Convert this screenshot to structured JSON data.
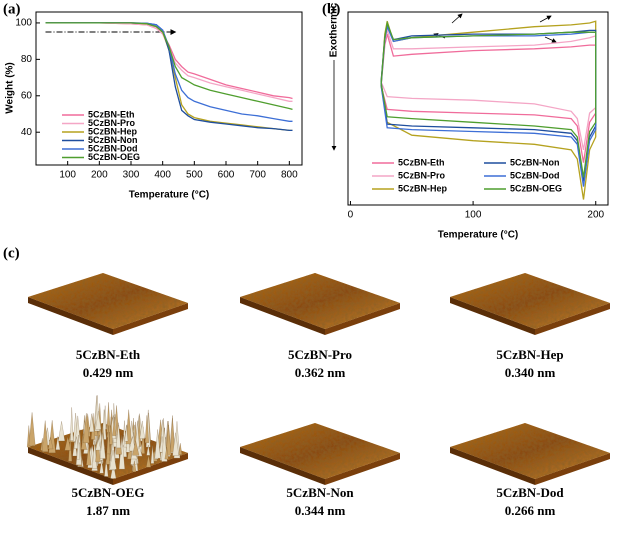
{
  "chart_data": [
    {
      "type": "line",
      "panel_label": "(a)",
      "xlabel": "Temperature (°C)",
      "ylabel": "Weight (%)",
      "xlim": [
        0,
        840
      ],
      "ylim": [
        22,
        106
      ],
      "xticks": [
        100,
        200,
        300,
        400,
        500,
        600,
        700,
        800
      ],
      "yticks": [
        40,
        60,
        80,
        100
      ],
      "reference_line": {
        "y": 95,
        "x": [
          30,
          440
        ]
      },
      "legend_columns": 1,
      "x": [
        30,
        100,
        200,
        300,
        350,
        380,
        400,
        420,
        440,
        460,
        480,
        500,
        550,
        600,
        650,
        700,
        750,
        800,
        810
      ],
      "series": [
        {
          "name": "5CzBN-Eth",
          "color": "#f06c9b",
          "values": [
            100,
            100,
            100,
            99.5,
            99,
            97,
            94,
            88,
            80,
            76,
            73,
            72,
            69,
            66,
            64,
            62,
            60,
            59,
            58.5
          ]
        },
        {
          "name": "5CzBN-Pro",
          "color": "#f4a6c6",
          "values": [
            100,
            100,
            100,
            99.5,
            99,
            97,
            94,
            86,
            78,
            74,
            71,
            70,
            67,
            65,
            63,
            61,
            59,
            57,
            57
          ]
        },
        {
          "name": "5CzBN-Hep",
          "color": "#b5a21f",
          "values": [
            100,
            100,
            100,
            100,
            99.5,
            98,
            95,
            85,
            70,
            55,
            50,
            48,
            46,
            45,
            44,
            43,
            42,
            41,
            41
          ]
        },
        {
          "name": "5CzBN-Non",
          "color": "#1f4e9e",
          "values": [
            100,
            100,
            100,
            100,
            99.8,
            99,
            96,
            85,
            65,
            52,
            49,
            47,
            45.5,
            44.5,
            43.5,
            42.5,
            42,
            41,
            41
          ]
        },
        {
          "name": "5CzBN-Dod",
          "color": "#3d6fd6",
          "values": [
            100,
            100,
            100,
            100,
            99.8,
            99,
            96,
            87,
            72,
            63,
            59,
            57,
            54,
            52,
            50,
            49,
            47.5,
            46,
            46
          ]
        },
        {
          "name": "5CzBN-OEG",
          "color": "#4f9e2e",
          "values": [
            100,
            100,
            100,
            100,
            99.6,
            98,
            95,
            87,
            76,
            70,
            68,
            66,
            63,
            61,
            59,
            57,
            55,
            53,
            52.5
          ]
        }
      ]
    },
    {
      "type": "line",
      "panel_label": "(b)",
      "xlabel": "Temperature (°C)",
      "ylabel": "Exothermic",
      "xlim": [
        -2,
        210
      ],
      "ylim": [
        -5,
        100
      ],
      "xticks": [
        0,
        100,
        200
      ],
      "legend_columns": 2,
      "series": [
        {
          "name": "5CzBN-Eth",
          "color": "#f06c9b",
          "x": [
            25,
            28,
            30,
            35,
            50,
            100,
            150,
            180,
            195,
            200,
            200,
            195,
            190,
            185,
            180,
            150,
            100,
            50,
            30,
            25
          ],
          "values": [
            60,
            82,
            88,
            76,
            77,
            79,
            80,
            81,
            82,
            82,
            45,
            40,
            18,
            38,
            42,
            44,
            45,
            46,
            47,
            60
          ]
        },
        {
          "name": "5CzBN-Pro",
          "color": "#f4a6c6",
          "x": [
            25,
            28,
            30,
            35,
            50,
            100,
            150,
            180,
            195,
            200,
            200,
            195,
            190,
            185,
            180,
            150,
            100,
            50,
            30,
            25
          ],
          "values": [
            62,
            84,
            90,
            80,
            80,
            81,
            82,
            84,
            86,
            87,
            48,
            45,
            25,
            42,
            46,
            50,
            52,
            53,
            54,
            62
          ]
        },
        {
          "name": "5CzBN-Hep",
          "color": "#b5a21f",
          "x": [
            25,
            28,
            30,
            35,
            50,
            100,
            150,
            180,
            195,
            200,
            200,
            195,
            190,
            185,
            180,
            150,
            100,
            50,
            30,
            25
          ],
          "values": [
            60,
            88,
            95,
            84,
            86,
            89,
            92,
            93,
            94,
            95,
            32,
            25,
            -2,
            20,
            25,
            28,
            30,
            33,
            40,
            60
          ]
        },
        {
          "name": "5CzBN-Non",
          "color": "#1f4e9e",
          "x": [
            25,
            28,
            30,
            35,
            50,
            100,
            150,
            180,
            195,
            200,
            200,
            195,
            190,
            185,
            180,
            150,
            100,
            50,
            30,
            25
          ],
          "values": [
            62,
            86,
            93,
            85,
            87,
            88,
            88,
            89,
            90,
            90,
            38,
            32,
            8,
            30,
            34,
            36,
            37,
            38,
            39,
            62
          ]
        },
        {
          "name": "5CzBN-Dod",
          "color": "#3d6fd6",
          "x": [
            25,
            28,
            30,
            35,
            50,
            100,
            150,
            180,
            195,
            200,
            200,
            195,
            190,
            185,
            180,
            150,
            100,
            50,
            30,
            25
          ],
          "values": [
            60,
            85,
            92,
            84,
            86,
            87,
            87,
            88,
            89,
            89,
            36,
            30,
            5,
            28,
            32,
            34,
            35,
            36,
            37,
            60
          ]
        },
        {
          "name": "5CzBN-OEG",
          "color": "#4f9e2e",
          "x": [
            25,
            28,
            30,
            35,
            50,
            100,
            150,
            180,
            195,
            200,
            200,
            195,
            190,
            185,
            180,
            150,
            100,
            50,
            30,
            25
          ],
          "values": [
            61,
            86,
            94,
            85,
            86,
            87,
            88,
            89,
            89,
            89,
            40,
            35,
            10,
            32,
            36,
            38,
            40,
            42,
            43,
            61
          ]
        }
      ]
    }
  ],
  "panel_c": {
    "panel_label": "(c)",
    "images": [
      {
        "name": "5CzBN-Eth",
        "roughness": "0.429 nm"
      },
      {
        "name": "5CzBN-Pro",
        "roughness": "0.362 nm"
      },
      {
        "name": "5CzBN-Hep",
        "roughness": "0.340 nm"
      },
      {
        "name": "5CzBN-OEG",
        "roughness": "1.87 nm"
      },
      {
        "name": "5CzBN-Non",
        "roughness": "0.344 nm"
      },
      {
        "name": "5CzBN-Dod",
        "roughness": "0.266 nm"
      }
    ]
  }
}
